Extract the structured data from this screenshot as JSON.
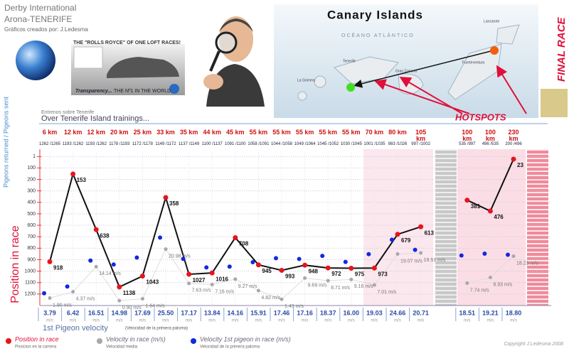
{
  "header": {
    "org": "Derby International",
    "place": "Arona-TENERIFE",
    "credits": "Gráficos creados por: J.Ledesma",
    "slogan": "THE \"ROLLS ROYCE\" OF ONE LOFT RACES!",
    "transparency": "Transparency...",
    "number_one": "THE Nº1 IN THE WORLD",
    "map_title": "Canary Islands",
    "ocean": "OCÉANO ATLÁNTICO",
    "islands": [
      "Tenerife",
      "La Gomera",
      "Gran Canaria",
      "Lanzarote",
      "Fuerteventura"
    ],
    "final_race": "FINAL RACE",
    "hotspots": "HOTSPOTS",
    "trainings_es": "Entrenos sobre Tenerife",
    "trainings_en": "Over Tenerife Island trainings...",
    "copyright": "Copyright J.Ledesma 2008"
  },
  "chart_data": {
    "type": "line",
    "categories": [
      "6 km",
      "12 km",
      "12 km",
      "20 km",
      "25 km",
      "33 km",
      "35 km",
      "44 km",
      "45 km",
      "55 km",
      "55 km",
      "55 km",
      "55 km",
      "55 km",
      "70 km",
      "80 km",
      "105 km",
      null,
      "100 km",
      "100 km",
      "230 km",
      null
    ],
    "returned_sent_label": "Pigeons returned / Pigeons sent",
    "returned_sent": [
      "1262 /1265",
      "1193 /1262",
      "1193 /1262",
      "1178 /1193",
      "1172 /1178",
      "1149 /1172",
      "1137 /1149",
      "1100 /1137",
      "1091 /1100",
      "1058 /1091",
      "1044 /1058",
      "1049 /1064",
      "1045 /1052",
      "1030 /1045",
      "1001 /1035",
      "983 /1026",
      "997 /1002",
      null,
      "535 /997",
      "496 /535",
      "200 /496",
      null
    ],
    "ylabel": "Position in race",
    "ylim": [
      1300,
      -20
    ],
    "yticks": [
      1,
      100,
      200,
      300,
      400,
      500,
      600,
      700,
      800,
      900,
      1000,
      1100,
      1200
    ],
    "y2lim": [
      -1,
      58
    ],
    "grid": true,
    "xlabel": "1st Pigeon velocity",
    "xlabel_note": "(Velocidad de la primera paloma)",
    "velocity_unit": "m/s",
    "series": [
      {
        "name": "Position in race",
        "subname": "Posicion en la carrera",
        "color": "#e8141c",
        "line_color": "#111111",
        "values": [
          918,
          153,
          638,
          1138,
          1043,
          358,
          1027,
          1016,
          708,
          945,
          993,
          948,
          972,
          975,
          973,
          679,
          613,
          null,
          381,
          476,
          23,
          null
        ]
      },
      {
        "name": "Velocity in race (m/s)",
        "subname": "Velocidad media",
        "color": "#a8a8a8",
        "axis": "y2",
        "values": [
          1.9,
          4.37,
          14.14,
          0.9,
          1.64,
          20.98,
          7.63,
          7.16,
          9.27,
          4.82,
          1.43,
          9.69,
          8.71,
          9.16,
          7.01,
          19.07,
          19.51,
          null,
          7.74,
          9.93,
          18.23,
          null
        ],
        "value_labels": [
          "1.90 m/s",
          "4.37 m/s",
          "14.14 m/s",
          "0.90 m/s",
          "1.64 m/s",
          "20.98 m/s",
          "7.63 m/s",
          "7.16 m/s",
          "9.27 m/s",
          "4.82 m/s",
          "1.43 m/s",
          "9.69 m/s",
          "8.71 m/s",
          "9.16 m/s",
          "7.01 m/s",
          "19.07 m/s",
          "19.51 m/s",
          null,
          "7.74 m/s",
          "9.93 m/s",
          "18.23 m/s",
          null
        ]
      },
      {
        "name": "Velocity 1st pigeon in race (m/s)",
        "subname": "Velocidad de la primera paloma",
        "color": "#1428e0",
        "axis": "y2",
        "values": [
          3.79,
          6.42,
          16.51,
          14.98,
          17.69,
          25.5,
          17.17,
          13.84,
          14.16,
          15.91,
          17.46,
          17.16,
          18.37,
          16.0,
          19.03,
          24.66,
          20.71,
          null,
          18.51,
          19.21,
          18.8,
          null
        ],
        "value_labels": [
          "3.79",
          "6.42",
          "16.51",
          "14.98",
          "17.69",
          "25.50",
          "17.17",
          "13.84",
          "14.16",
          "15.91",
          "17.46",
          "17.16",
          "18.37",
          "16.00",
          "19.03",
          "24.66",
          "20.71",
          null,
          "18.51",
          "19.21",
          "18.80",
          null
        ]
      }
    ]
  }
}
